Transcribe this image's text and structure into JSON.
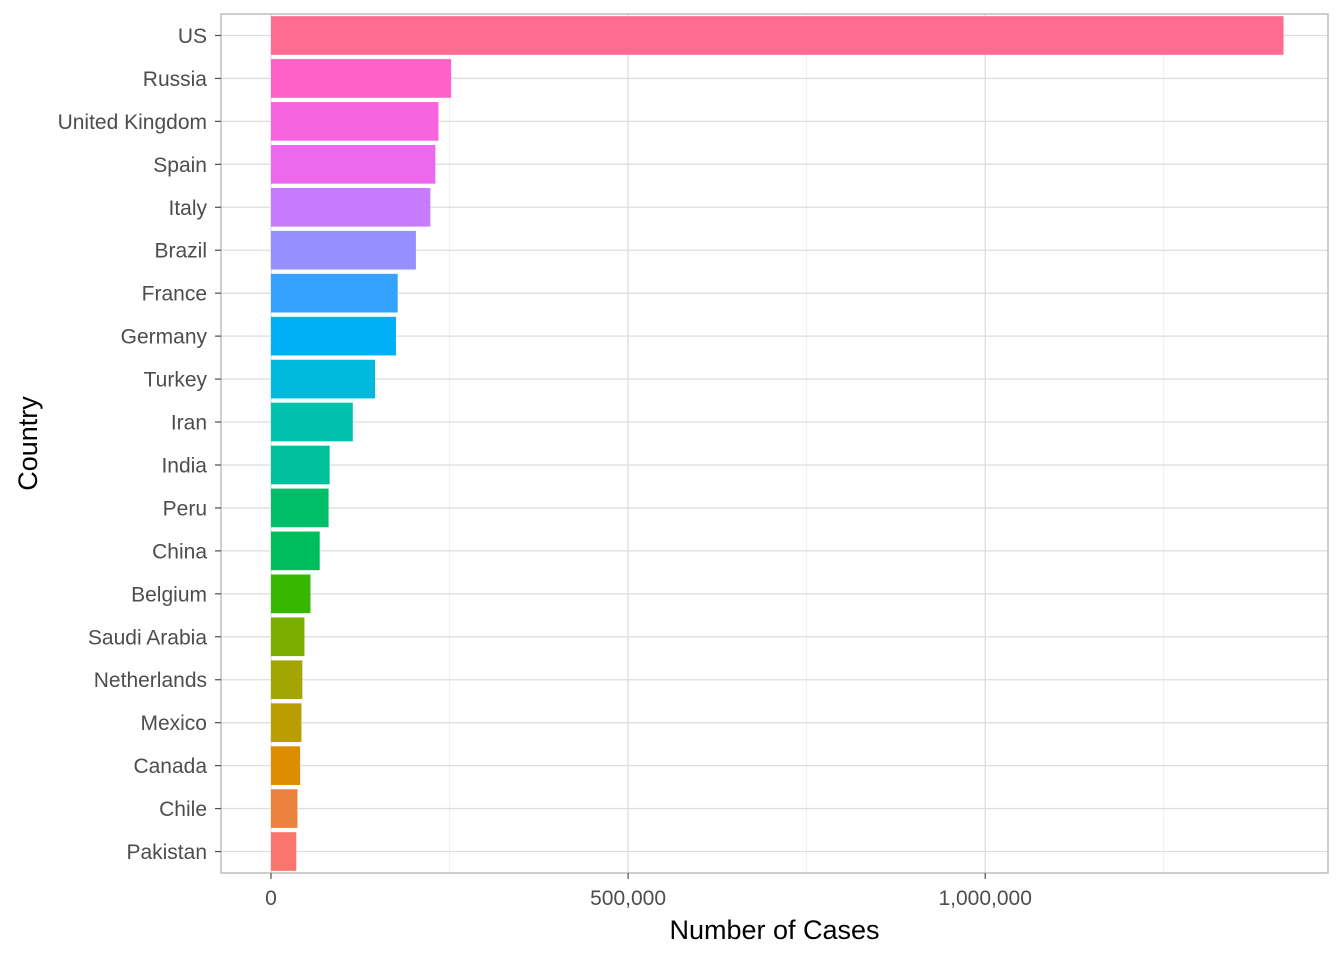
{
  "chart_data": {
    "type": "bar",
    "orientation": "horizontal",
    "title": "",
    "xlabel": "Number of Cases",
    "ylabel": "Country",
    "xlim": [
      -70000,
      1480000
    ],
    "x_ticks": [
      0,
      500000,
      1000000
    ],
    "x_tick_labels": [
      "0",
      "500,000",
      "1,000,000"
    ],
    "grid": true,
    "legend": "none",
    "categories": [
      "US",
      "Russia",
      "United Kingdom",
      "Spain",
      "Italy",
      "Brazil",
      "France",
      "Germany",
      "Turkey",
      "Iran",
      "India",
      "Peru",
      "China",
      "Belgium",
      "Saudi Arabia",
      "Netherlands",
      "Mexico",
      "Canada",
      "Chile",
      "Pakistan"
    ],
    "values": [
      1417774,
      252245,
      234440,
      230183,
      223096,
      202918,
      177423,
      174975,
      145744,
      114533,
      82135,
      80604,
      68214,
      55280,
      46869,
      43880,
      42595,
      40750,
      37040,
      35384
    ],
    "colors": [
      "#FF6C91",
      "#FF61C9",
      "#F863DF",
      "#ED68ED",
      "#C77CFF",
      "#9590FF",
      "#35A2FF",
      "#00B0F6",
      "#00BADE",
      "#00C1AB",
      "#00C19C",
      "#00BE67",
      "#00BD5C",
      "#39B600",
      "#7CAE00",
      "#A3A500",
      "#BB9D00",
      "#DE8C00",
      "#ED813E",
      "#F8766D"
    ]
  }
}
